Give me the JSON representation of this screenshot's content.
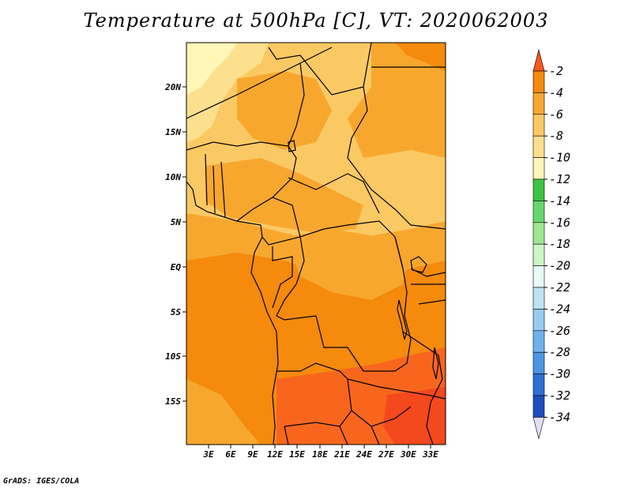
{
  "title": "Temperature at 500hPa [C], VT: 2020062003",
  "credit": "GrADS: IGES/COLA",
  "map": {
    "lat_labels": [
      "20N",
      "15N",
      "10N",
      "5N",
      "EQ",
      "5S",
      "10S",
      "15S"
    ],
    "lon_labels": [
      "3E",
      "6E",
      "9E",
      "12E",
      "15E",
      "18E",
      "21E",
      "24E",
      "27E",
      "30E",
      "33E"
    ]
  },
  "colorbar": {
    "labels": [
      "-2",
      "-4",
      "-6",
      "-8",
      "-10",
      "-12",
      "-14",
      "-16",
      "-18",
      "-20",
      "-22",
      "-24",
      "-26",
      "-28",
      "-30",
      "-32",
      "-34"
    ],
    "colors": [
      "#f85a1e",
      "#f58a0c",
      "#f8a72e",
      "#fbc964",
      "#fde08e",
      "#fff6b8",
      "#3cc540",
      "#66d86a",
      "#9de88e",
      "#cbf7c4",
      "#e8fbf6",
      "#bfe3f6",
      "#97ccf1",
      "#6eb2ec",
      "#4b96e2",
      "#2b70d6",
      "#1a4fc0",
      "#0b2e9c",
      "#0a1870",
      "#e0e0f4"
    ]
  },
  "region_colors": {
    "base": "#f8a72e",
    "warm": "#f58a0c",
    "warmer": "#f8661e",
    "hot": "#f4491c",
    "cool": "#fbc964",
    "cooler": "#fde08e",
    "coolest": "#fff6b8"
  }
}
